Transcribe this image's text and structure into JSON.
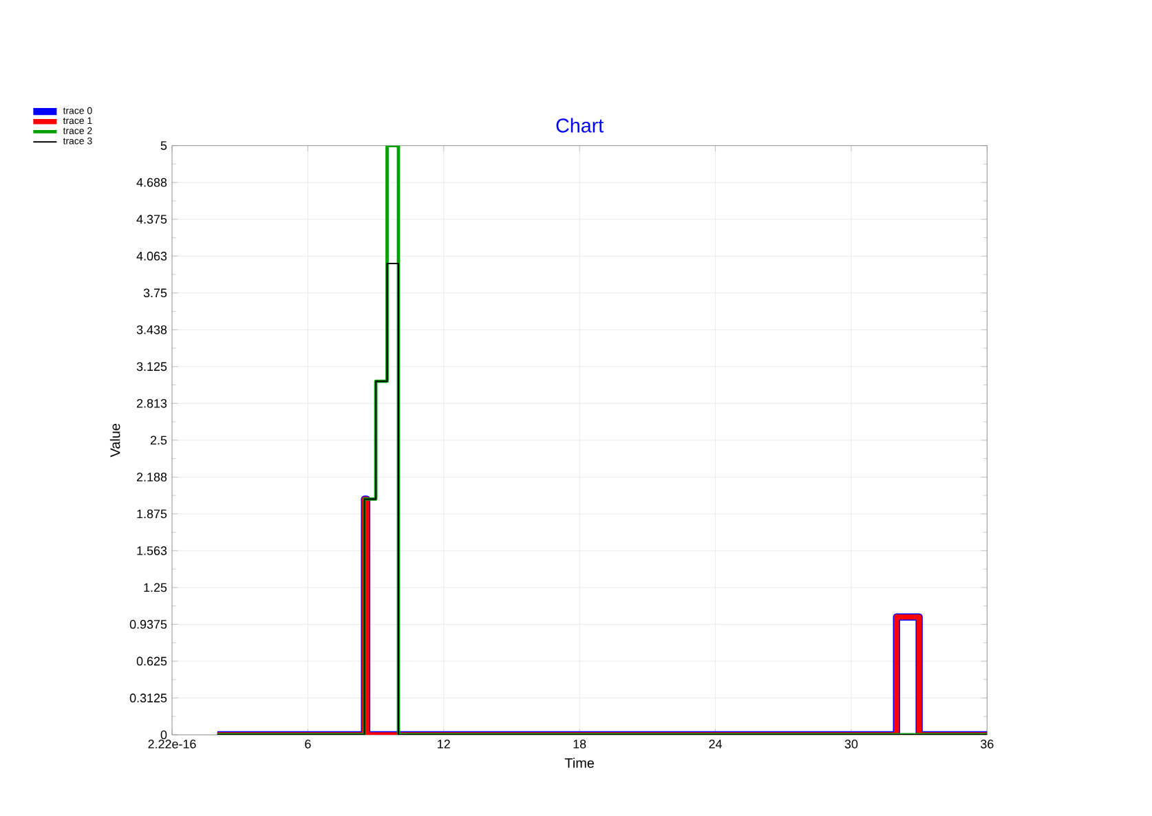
{
  "chart_data": {
    "type": "step",
    "title": "Chart",
    "xlabel": "Time",
    "ylabel": "Value",
    "xlim": [
      0,
      36
    ],
    "ylim": [
      0,
      5
    ],
    "xticks": [
      {
        "value": 0,
        "label": "2.22e-16"
      },
      6,
      12,
      18,
      24,
      30,
      36
    ],
    "yticks": [
      0,
      0.3125,
      0.625,
      0.9375,
      1.25,
      {
        "value": 1.5625,
        "label": "1.563"
      },
      1.875,
      {
        "value": 2.1875,
        "label": "2.188"
      },
      2.5,
      {
        "value": 2.8125,
        "label": "2.813"
      },
      3.125,
      {
        "value": 3.4375,
        "label": "3.438"
      },
      3.75,
      {
        "value": 4.0625,
        "label": "4.063"
      },
      4.375,
      {
        "value": 4.6875,
        "label": "4.688"
      },
      5
    ],
    "grid": true,
    "legend": "top left",
    "series": [
      {
        "name": "trace 0",
        "color": "#0000ff",
        "x": [
          2,
          8.5,
          8.6,
          32,
          33,
          36
        ],
        "values": [
          0,
          2,
          0,
          1,
          0,
          0
        ]
      },
      {
        "name": "trace 1",
        "color": "#ff0000",
        "x": [
          2,
          8.5,
          8.6,
          32,
          33,
          36
        ],
        "values": [
          0,
          2,
          0,
          1,
          0,
          0
        ]
      },
      {
        "name": "trace 2",
        "color": "#00a000",
        "x": [
          2,
          8.5,
          9,
          9.5,
          10,
          36
        ],
        "values": [
          0,
          2,
          3,
          5,
          0,
          0
        ]
      },
      {
        "name": "trace 3",
        "color": "#000000",
        "x": [
          2,
          8.5,
          9,
          9.5,
          10,
          36
        ],
        "values": [
          0,
          2,
          3,
          4,
          0,
          0
        ]
      }
    ]
  }
}
